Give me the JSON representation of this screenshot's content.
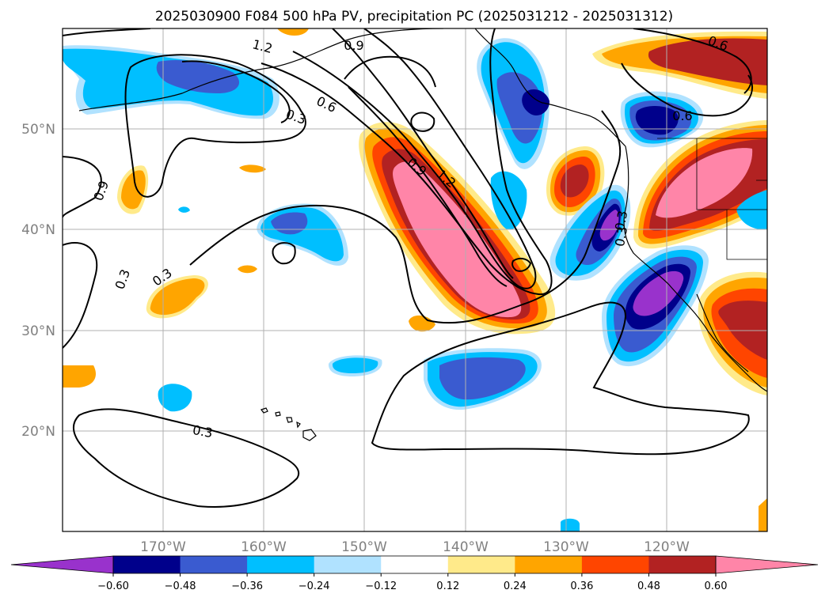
{
  "title": "2025030900 F084 500 hPa PV, precipitation PC (2025031212 - 2025031312)",
  "lat_labels": [
    "20°N",
    "30°N",
    "40°N",
    "50°N"
  ],
  "lon_labels": [
    "170°W",
    "160°W",
    "150°W",
    "140°W",
    "130°W",
    "120°W"
  ],
  "colorbar": {
    "ticks": [
      "−0.60",
      "−0.48",
      "−0.36",
      "−0.24",
      "−0.12",
      "0.12",
      "0.24",
      "0.36",
      "0.48",
      "0.60"
    ],
    "colors": [
      "#9932cc",
      "#00008b",
      "#3a5bd0",
      "#00bfff",
      "#b0e2ff",
      "#ffffff",
      "#ffea8a",
      "#ffa500",
      "#ff4500",
      "#b22222",
      "#ff85a8"
    ]
  },
  "contour_labels": [
    "1.2",
    "0.9",
    "0.6",
    "0.3",
    "0.6",
    "0.9",
    "1.2",
    "0.9",
    "0.6",
    "0.3",
    "0.3",
    "0.3",
    "0.3",
    "0.3"
  ],
  "chart_data": {
    "type": "heatmap",
    "region": {
      "lon": [
        -180,
        -110
      ],
      "lat": [
        10,
        60
      ]
    },
    "fill_levels": [
      -0.6,
      -0.48,
      -0.36,
      -0.24,
      -0.12,
      0.12,
      0.24,
      0.36,
      0.48,
      0.6
    ],
    "contour_levels": [
      0.3,
      0.6,
      0.9,
      1.2
    ],
    "lat_ticks": [
      20,
      30,
      40,
      50
    ],
    "lon_ticks": [
      -170,
      -160,
      -150,
      -140,
      -130,
      -120
    ],
    "grid": true,
    "colorbar_position": "bottom",
    "colorbar_extend": "both"
  }
}
